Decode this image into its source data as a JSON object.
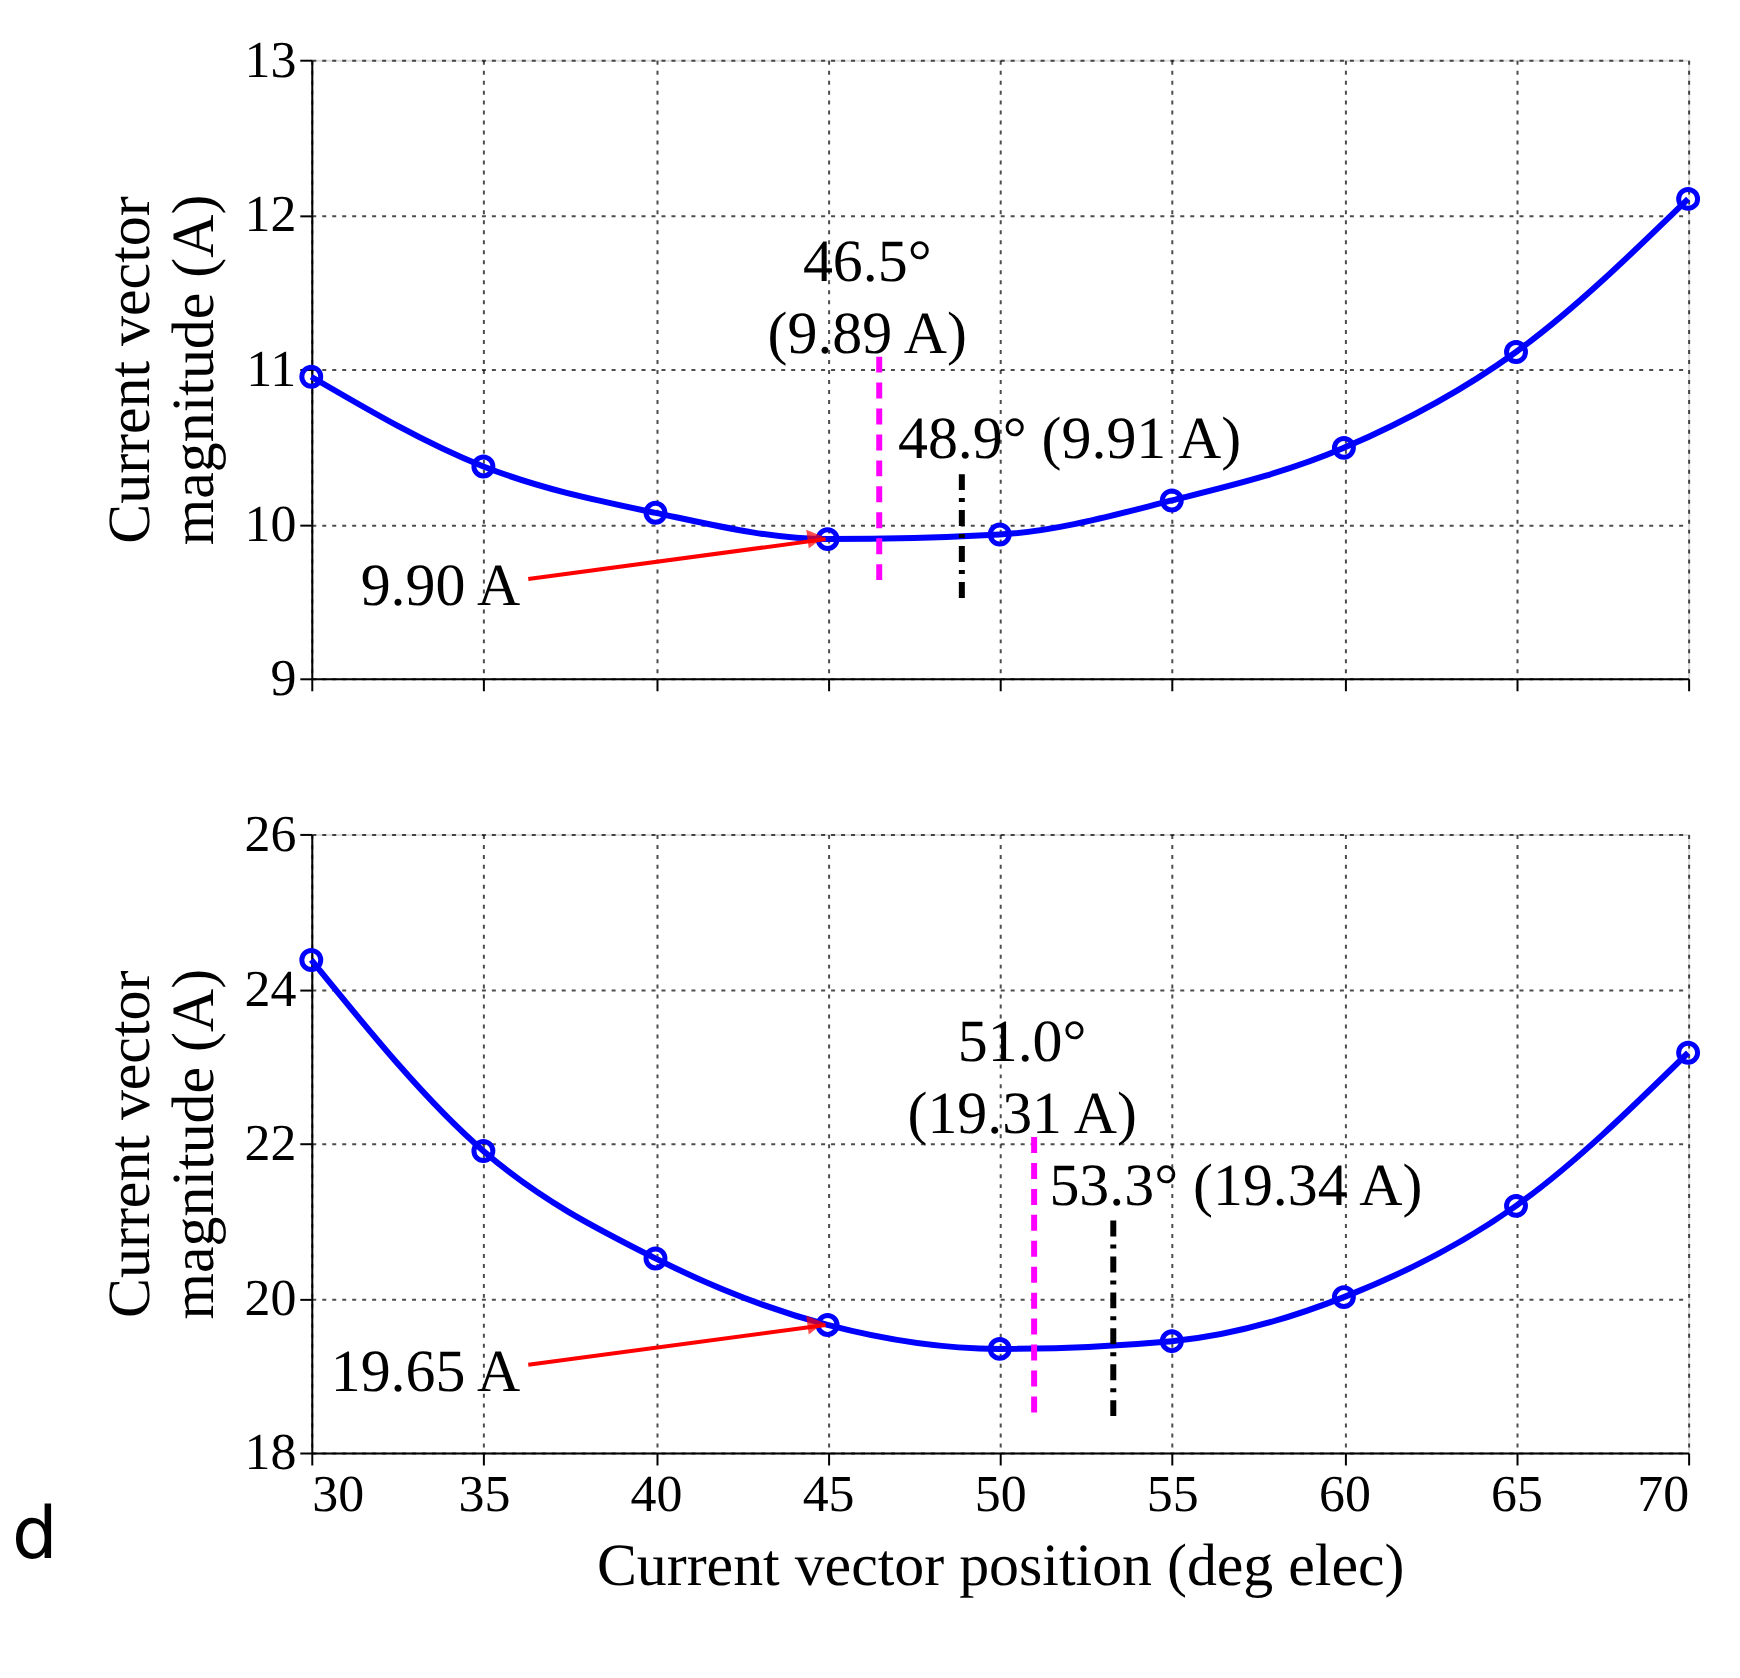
{
  "chart_data": [
    {
      "type": "line",
      "x": [
        30,
        35,
        40,
        45,
        50,
        55,
        60,
        65,
        70
      ],
      "ylabel": "Current vector\nmagnitude (A)",
      "series": [
        {
          "color": "#0000ff",
          "values": [
            10.95,
            10.37,
            10.07,
            9.9,
            9.93,
            10.15,
            10.49,
            11.11,
            12.1
          ]
        }
      ],
      "xlim": [
        30,
        70
      ],
      "xticks": [
        30,
        35,
        40,
        45,
        50,
        55,
        60,
        65,
        70
      ],
      "ylim": [
        9,
        13
      ],
      "yticks": [
        9,
        10,
        11,
        12,
        13
      ],
      "tick_labels": "y",
      "grid": true,
      "marker": "circle",
      "line_style": "solid",
      "ref_lines": [
        {
          "axis": "x",
          "value": 46.5,
          "label": "46.5°\n(9.89 A)",
          "color": "#ff00ff",
          "line_style": "dashed"
        },
        {
          "axis": "x",
          "value": 48.9,
          "label": "48.9° (9.91 A)",
          "color": "#000000",
          "line_style": "dashdot"
        }
      ],
      "annotations": [
        {
          "text": "9.90 A",
          "x": 45,
          "y": 9.9
        }
      ]
    },
    {
      "type": "line",
      "x": [
        30,
        35,
        40,
        45,
        50,
        55,
        60,
        65,
        70
      ],
      "ylabel": "Current vector\nmagnitude (A)",
      "xlabel": "Current vector position (deg elec)",
      "series": [
        {
          "color": "#0000ff",
          "values": [
            24.37,
            21.9,
            20.51,
            19.65,
            19.34,
            19.44,
            20.01,
            21.19,
            23.17
          ]
        }
      ],
      "xlim": [
        30,
        70
      ],
      "xticks": [
        30,
        35,
        40,
        45,
        50,
        55,
        60,
        65,
        70
      ],
      "ylim": [
        18,
        26
      ],
      "yticks": [
        18,
        20,
        22,
        24,
        26
      ],
      "grid": true,
      "marker": "circle",
      "line_style": "solid",
      "ref_lines": [
        {
          "axis": "x",
          "value": 51.0,
          "label": "51.0°\n(19.31 A)",
          "color": "#ff00ff",
          "line_style": "dashed"
        },
        {
          "axis": "x",
          "value": 53.3,
          "label": "53.3° (19.34 A)",
          "color": "#000000",
          "line_style": "dashdot"
        }
      ],
      "annotations": [
        {
          "text": "19.65 A",
          "x": 45,
          "y": 19.65
        },
        "d"
      ]
    }
  ]
}
